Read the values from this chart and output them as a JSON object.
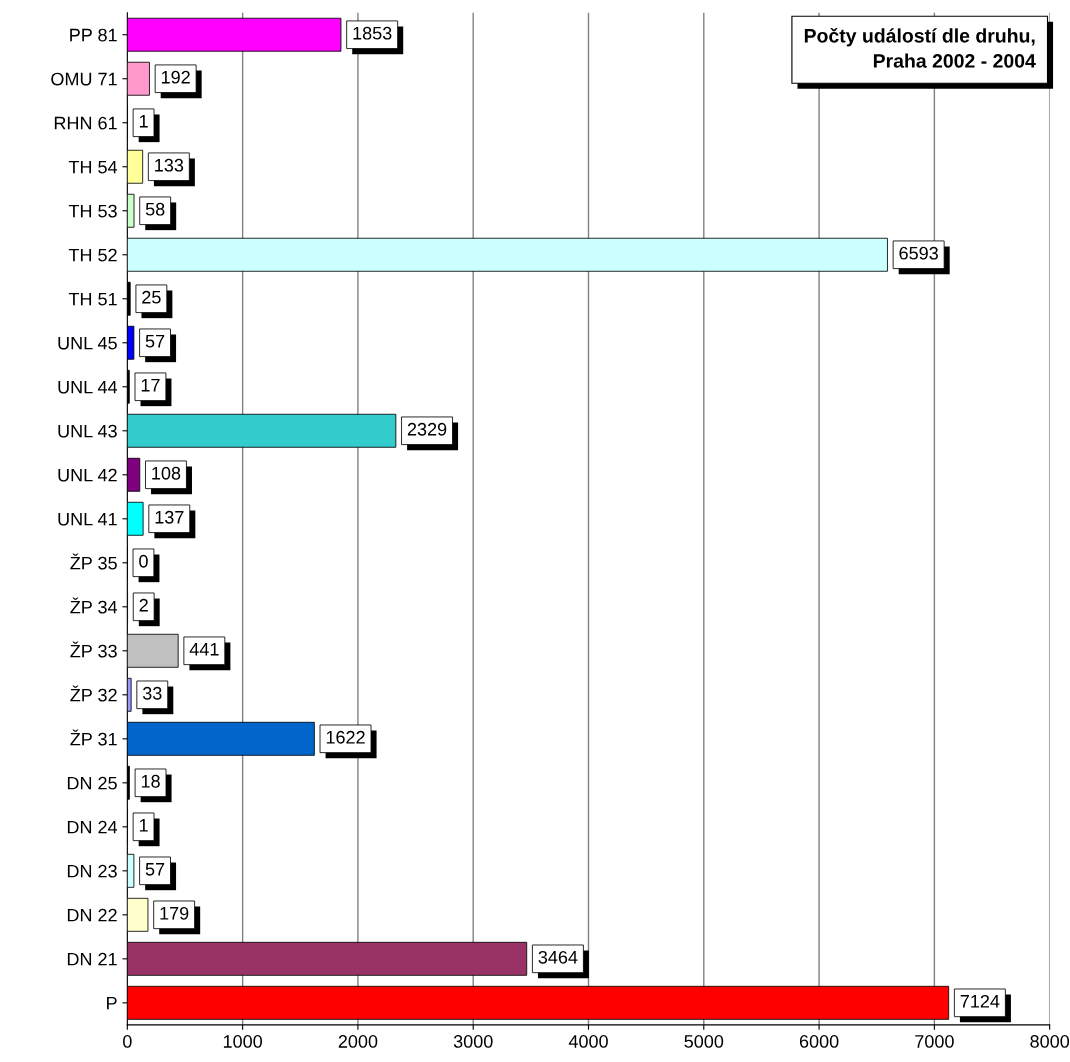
{
  "chart_data": {
    "type": "bar",
    "orientation": "horizontal",
    "title": "Počty událostí dle druhu,\nPraha 2002 - 2004",
    "categories": [
      "PP 81",
      "OMU 71",
      "RHN 61",
      "TH 54",
      "TH 53",
      "TH 52",
      "TH 51",
      "UNL 45",
      "UNL 44",
      "UNL 43",
      "UNL 42",
      "UNL 41",
      "ŽP 35",
      "ŽP 34",
      "ŽP 33",
      "ŽP 32",
      "ŽP 31",
      "DN 25",
      "DN 24",
      "DN 23",
      "DN 22",
      "DN 21",
      "P"
    ],
    "values": [
      1853,
      192,
      1,
      133,
      58,
      6593,
      25,
      57,
      17,
      2329,
      108,
      137,
      0,
      2,
      441,
      33,
      1622,
      18,
      1,
      57,
      179,
      3464,
      7124
    ],
    "colors": [
      "#ff00ff",
      "#ff99cc",
      "#ffffff",
      "#ffff99",
      "#ccffcc",
      "#ccffff",
      "#000000",
      "#0000ff",
      "#000000",
      "#33cccc",
      "#800080",
      "#00ffff",
      "#ffffff",
      "#ffffff",
      "#c0c0c0",
      "#9999ff",
      "#0066cc",
      "#000000",
      "#ffffff",
      "#ccffff",
      "#ffffcc",
      "#993366",
      "#ff0000"
    ],
    "xlim": [
      0,
      8000
    ],
    "xticks": [
      0,
      1000,
      2000,
      3000,
      4000,
      5000,
      6000,
      7000,
      8000
    ],
    "grid": "x",
    "data_labels": true
  }
}
